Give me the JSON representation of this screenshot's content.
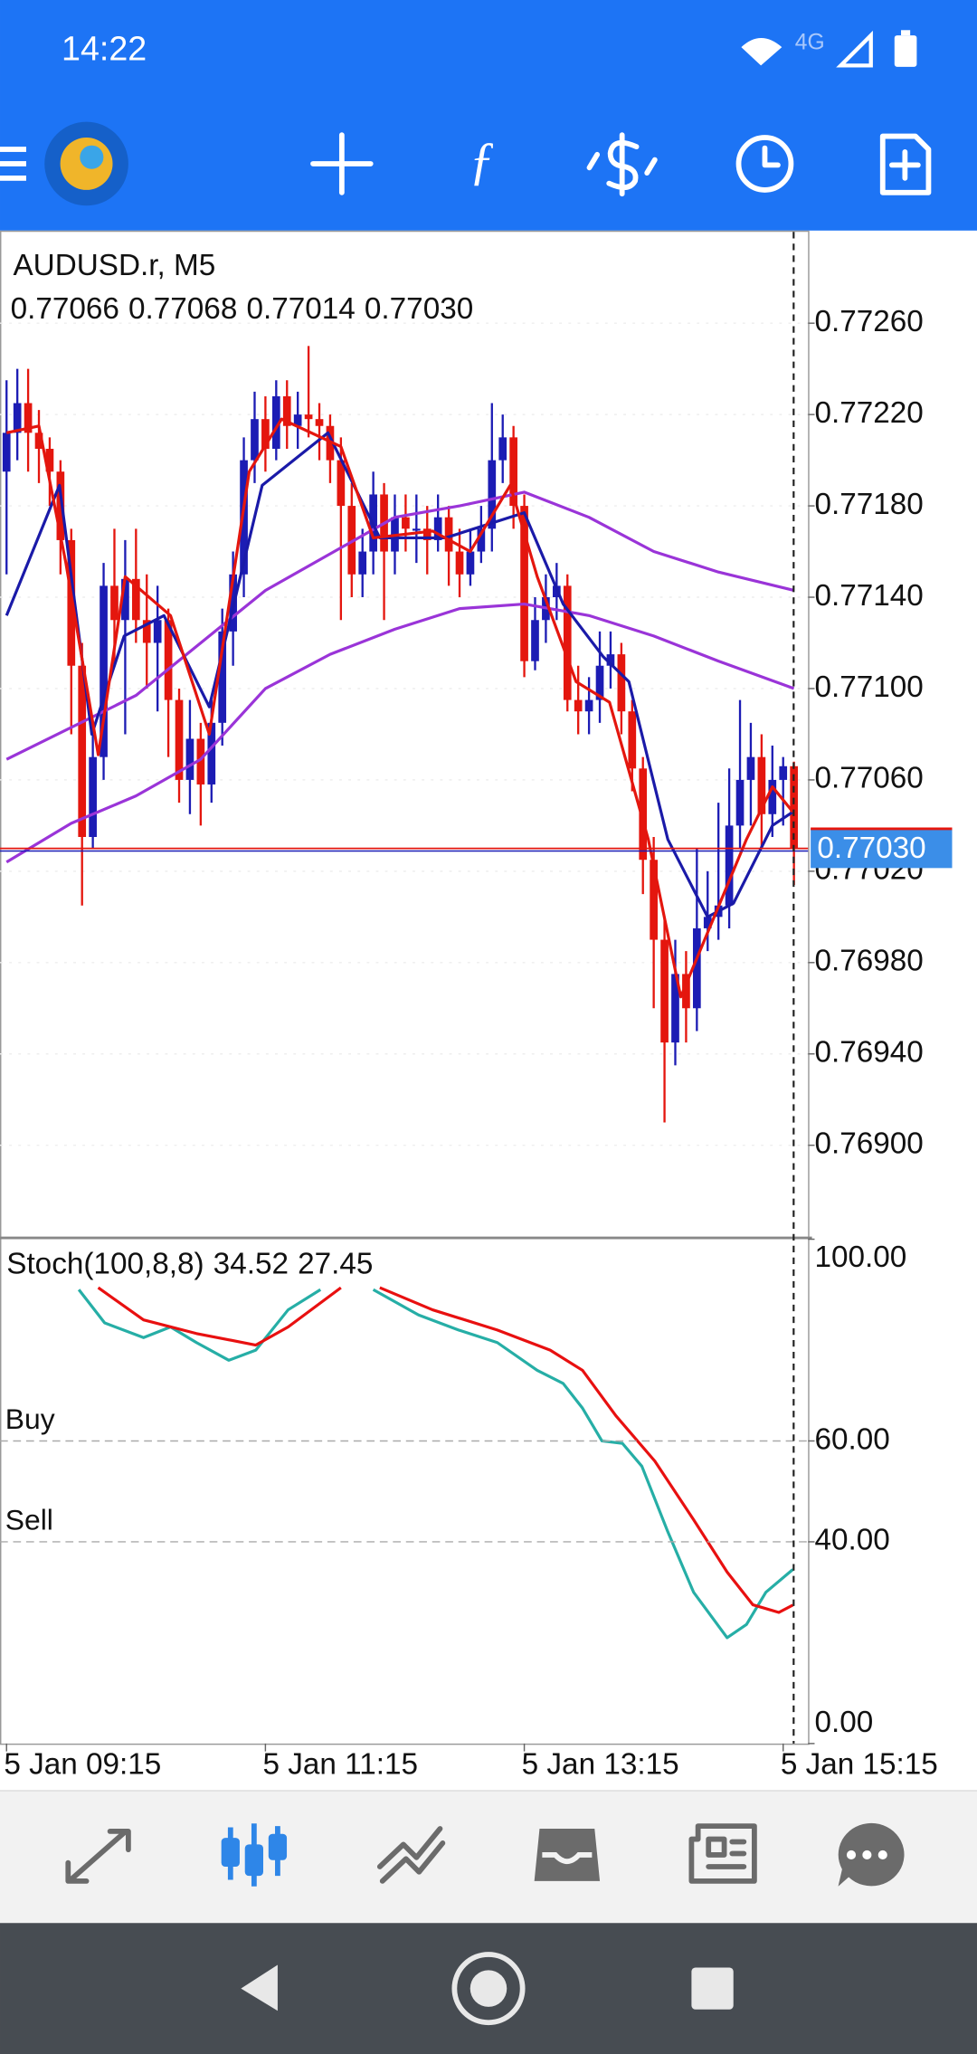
{
  "status_bar": {
    "time": "14:22",
    "network": "4G"
  },
  "chart_data": [
    {
      "type": "candlestick",
      "title": "AUDUSD.r, M5",
      "ohlc_labels": [
        "0.77066",
        "0.77068",
        "0.77014",
        "0.77030"
      ],
      "categories": [
        "5 Jan 09:15",
        null,
        null,
        null,
        null,
        null,
        null,
        null,
        null,
        null,
        null,
        null,
        null,
        null,
        null,
        null,
        null,
        null,
        null,
        null,
        null,
        null,
        null,
        null,
        "5 Jan 11:15",
        null,
        null,
        null,
        null,
        null,
        null,
        null,
        null,
        null,
        null,
        null,
        null,
        null,
        null,
        null,
        null,
        null,
        null,
        null,
        null,
        null,
        null,
        null,
        "5 Jan 13:15",
        null,
        null,
        null,
        null,
        null,
        null,
        null,
        null,
        null,
        null,
        null,
        null,
        null,
        null,
        null,
        null,
        null,
        null,
        null,
        null,
        null,
        null,
        null,
        "5 Jan 15:15",
        null
      ],
      "candles": [
        [
          0.77195,
          0.77235,
          0.7715,
          0.77212
        ],
        [
          0.77212,
          0.7724,
          0.772,
          0.77225
        ],
        [
          0.77225,
          0.7724,
          0.77195,
          0.77212
        ],
        [
          0.77212,
          0.77222,
          0.7719,
          0.77205
        ],
        [
          0.77205,
          0.7721,
          0.7718,
          0.77195
        ],
        [
          0.77195,
          0.772,
          0.7715,
          0.77165
        ],
        [
          0.77165,
          0.7717,
          0.7708,
          0.7711
        ],
        [
          0.7711,
          0.7712,
          0.77005,
          0.77035
        ],
        [
          0.77035,
          0.7708,
          0.7703,
          0.7707
        ],
        [
          0.7707,
          0.77155,
          0.7706,
          0.77145
        ],
        [
          0.77145,
          0.7717,
          0.7711,
          0.7713
        ],
        [
          0.7713,
          0.77165,
          0.7708,
          0.77148
        ],
        [
          0.77148,
          0.7717,
          0.7712,
          0.7713
        ],
        [
          0.7713,
          0.7715,
          0.771,
          0.7712
        ],
        [
          0.7712,
          0.77145,
          0.7709,
          0.7713
        ],
        [
          0.7713,
          0.77135,
          0.7707,
          0.77095
        ],
        [
          0.77095,
          0.771,
          0.7705,
          0.7706
        ],
        [
          0.7706,
          0.77095,
          0.77045,
          0.77078
        ],
        [
          0.77078,
          0.77085,
          0.7704,
          0.77058
        ],
        [
          0.77058,
          0.77095,
          0.7705,
          0.77085
        ],
        [
          0.77085,
          0.77135,
          0.77075,
          0.77125
        ],
        [
          0.77125,
          0.7716,
          0.7711,
          0.7715
        ],
        [
          0.7715,
          0.7721,
          0.7714,
          0.772
        ],
        [
          0.772,
          0.7723,
          0.7719,
          0.77218
        ],
        [
          0.77218,
          0.77228,
          0.77195,
          0.77205
        ],
        [
          0.77205,
          0.77235,
          0.772,
          0.77228
        ],
        [
          0.77228,
          0.77235,
          0.77205,
          0.77215
        ],
        [
          0.77215,
          0.7723,
          0.77205,
          0.7722
        ],
        [
          0.7722,
          0.7725,
          0.7721,
          0.77218
        ],
        [
          0.77218,
          0.77225,
          0.772,
          0.77215
        ],
        [
          0.77215,
          0.7722,
          0.7719,
          0.772
        ],
        [
          0.772,
          0.7721,
          0.7713,
          0.7718
        ],
        [
          0.7718,
          0.7719,
          0.7714,
          0.7715
        ],
        [
          0.7715,
          0.7717,
          0.7714,
          0.7716
        ],
        [
          0.7716,
          0.77195,
          0.7715,
          0.77185
        ],
        [
          0.77185,
          0.7719,
          0.7713,
          0.7716
        ],
        [
          0.7716,
          0.77185,
          0.7715,
          0.77175
        ],
        [
          0.77175,
          0.77185,
          0.7716,
          0.7717
        ],
        [
          0.7717,
          0.77185,
          0.77155,
          0.7717
        ],
        [
          0.7717,
          0.7718,
          0.7715,
          0.77165
        ],
        [
          0.77165,
          0.77185,
          0.7716,
          0.77175
        ],
        [
          0.77175,
          0.7718,
          0.77145,
          0.7716
        ],
        [
          0.7716,
          0.7717,
          0.7714,
          0.7715
        ],
        [
          0.7715,
          0.7717,
          0.77145,
          0.7716
        ],
        [
          0.7716,
          0.7718,
          0.77155,
          0.7717
        ],
        [
          0.7717,
          0.77225,
          0.7716,
          0.772
        ],
        [
          0.772,
          0.7722,
          0.7719,
          0.7721
        ],
        [
          0.7721,
          0.77215,
          0.7717,
          0.7718
        ],
        [
          0.7718,
          0.77185,
          0.77105,
          0.77112
        ],
        [
          0.77112,
          0.7714,
          0.77108,
          0.7713
        ],
        [
          0.7713,
          0.7715,
          0.7712,
          0.7714
        ],
        [
          0.7714,
          0.77155,
          0.7713,
          0.77145
        ],
        [
          0.77145,
          0.7715,
          0.7709,
          0.77095
        ],
        [
          0.77095,
          0.7711,
          0.7708,
          0.7709
        ],
        [
          0.7709,
          0.77105,
          0.7708,
          0.77095
        ],
        [
          0.77095,
          0.77125,
          0.77085,
          0.7711
        ],
        [
          0.7711,
          0.77125,
          0.771,
          0.77115
        ],
        [
          0.77115,
          0.7712,
          0.7708,
          0.7709
        ],
        [
          0.7709,
          0.77095,
          0.77055,
          0.77065
        ],
        [
          0.77065,
          0.7707,
          0.7701,
          0.77025
        ],
        [
          0.77025,
          0.77035,
          0.7696,
          0.7699
        ],
        [
          0.7699,
          0.77,
          0.7691,
          0.76945
        ],
        [
          0.76945,
          0.7699,
          0.76935,
          0.76975
        ],
        [
          0.76975,
          0.76985,
          0.76945,
          0.7696
        ],
        [
          0.7696,
          0.7703,
          0.7695,
          0.76995
        ],
        [
          0.76995,
          0.7702,
          0.76985,
          0.77
        ],
        [
          0.77,
          0.7705,
          0.7699,
          0.77005
        ],
        [
          0.77005,
          0.77065,
          0.76995,
          0.7704
        ],
        [
          0.7704,
          0.77095,
          0.7703,
          0.7706
        ],
        [
          0.7706,
          0.77085,
          0.7704,
          0.7707
        ],
        [
          0.7707,
          0.7708,
          0.7703,
          0.77045
        ],
        [
          0.77045,
          0.77075,
          0.77035,
          0.7706
        ],
        [
          0.7706,
          0.7707,
          0.7704,
          0.77066
        ],
        [
          0.77066,
          0.77068,
          0.77014,
          0.7703
        ]
      ],
      "up_color": "#1c1cb4",
      "down_color": "#e4160e",
      "series": [
        {
          "color": "#9a34d8",
          "x": [
            0,
            12,
            24,
            36,
            42,
            48,
            54,
            60,
            66,
            73
          ],
          "values": [
            0.77069,
            0.77097,
            0.77143,
            0.77175,
            0.7718,
            0.77186,
            0.77175,
            0.7716,
            0.77151,
            0.77143
          ]
        },
        {
          "color": "#9a34d8",
          "x": [
            0,
            6,
            12,
            18,
            24,
            30,
            36,
            42,
            48,
            54,
            60,
            66,
            73
          ],
          "values": [
            0.77024,
            0.77041,
            0.77053,
            0.77069,
            0.771,
            0.77115,
            0.77126,
            0.77135,
            0.77137,
            0.77132,
            0.77123,
            0.77112,
            0.771
          ]
        },
        {
          "color": "#1a1aa8",
          "x": [
            0,
            4.9,
            7.9,
            10.9,
            14.6,
            18.8,
            23.7,
            29.8,
            34.6,
            40.7,
            48,
            51.6,
            55.3,
            57.7,
            61.3,
            65,
            67.4,
            71,
            72.9
          ],
          "values": [
            0.77132,
            0.77189,
            0.7708,
            0.77123,
            0.77132,
            0.77092,
            0.77189,
            0.77212,
            0.77166,
            0.77166,
            0.77177,
            0.77137,
            0.77114,
            0.77103,
            0.77034,
            0.77,
            0.77006,
            0.7704,
            0.77046
          ]
        },
        {
          "color": "#e4160e",
          "x": [
            0,
            3,
            5.5,
            8.5,
            11,
            15.2,
            18.8,
            22.5,
            25.5,
            31,
            34,
            39.5,
            43,
            46.7,
            49.2,
            52.8,
            55.9,
            59.5,
            62.5,
            65.6,
            68.6,
            71,
            72.9
          ],
          "values": [
            0.77212,
            0.77215,
            0.77155,
            0.77071,
            0.77149,
            0.77132,
            0.7708,
            0.77195,
            0.77218,
            0.77206,
            0.77166,
            0.77169,
            0.7716,
            0.77189,
            0.77149,
            0.77103,
            0.77094,
            0.77034,
            0.76965,
            0.77,
            0.77034,
            0.77057,
            0.77046
          ]
        }
      ],
      "ylim": [
        0.7686,
        0.773
      ],
      "yticks": [
        {
          "value": 0.7726,
          "label": "0.77260"
        },
        {
          "value": 0.7722,
          "label": "0.77220"
        },
        {
          "value": 0.7718,
          "label": "0.77180"
        },
        {
          "value": 0.7714,
          "label": "0.77140"
        },
        {
          "value": 0.771,
          "label": "0.77100"
        },
        {
          "value": 0.7706,
          "label": "0.77060"
        },
        {
          "value": 0.7702,
          "label": "0.77020"
        },
        {
          "value": 0.7698,
          "label": "0.76980"
        },
        {
          "value": 0.7694,
          "label": "0.76940"
        },
        {
          "value": 0.769,
          "label": "0.76900"
        }
      ],
      "grid": true,
      "last_price": {
        "value": 0.7703,
        "label": "0.77030",
        "color": "#3b8ee8"
      }
    },
    {
      "type": "line",
      "title": "Stoch(100,8,8)",
      "series": [
        {
          "color": "#26aea6",
          "x": [
            6.7,
            9.1,
            12.7,
            15.2,
            17.6,
            20.6,
            23.1,
            26.1,
            29.1,
            31.5,
            34,
            38.2,
            41.9,
            45.5,
            49.2,
            51.6,
            53.4,
            55.2,
            57.1,
            58.9,
            61.3,
            63.7,
            66.8,
            68.6,
            70.4,
            72.9
          ],
          "values": [
            90,
            83.4,
            80.5,
            82.6,
            79.5,
            76,
            78,
            86,
            90,
            null,
            90,
            85,
            82,
            79.5,
            74,
            71.4,
            66.5,
            60,
            59.5,
            55,
            42,
            30,
            21,
            23.6,
            30,
            34.52
          ]
        },
        {
          "color": "#e81010",
          "x": [
            8.5,
            12.7,
            17.6,
            23.1,
            26.1,
            31,
            32.8,
            34.6,
            39.5,
            45.5,
            50.4,
            53.4,
            56.5,
            60.1,
            63.7,
            66.8,
            69.2,
            71.6,
            72.9
          ],
          "values": [
            90.4,
            84,
            81.3,
            79,
            82.6,
            90.4,
            null,
            90.4,
            86,
            82,
            78,
            74,
            65,
            56,
            44.4,
            34,
            27.5,
            26,
            27.45
          ]
        }
      ],
      "ylim": [
        0,
        100
      ],
      "yticks": [
        {
          "value": 100,
          "label": "100.00"
        },
        {
          "value": 60,
          "label": "60.00"
        },
        {
          "value": 40,
          "label": "40.00"
        },
        {
          "value": 0,
          "label": "0.00"
        }
      ],
      "levels": [
        {
          "value": 60,
          "label": "Buy"
        },
        {
          "value": 40,
          "label": "Sell"
        }
      ]
    }
  ]
}
